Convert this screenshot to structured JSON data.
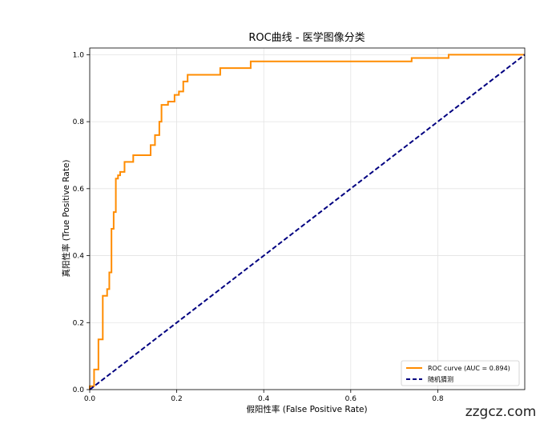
{
  "chart_data": {
    "type": "line",
    "title": "ROC曲线 - 医学图像分类",
    "xlabel": "假阳性率 (False Positive Rate)",
    "ylabel": "真阳性率 (True Positive Rate)",
    "xlim": [
      0,
      1
    ],
    "ylim": [
      0,
      1.02
    ],
    "xticks": [
      0.0,
      0.2,
      0.4,
      0.6,
      0.8
    ],
    "xtick_labels": [
      "0.0",
      "0.2",
      "0.4",
      "0.6",
      "0.8"
    ],
    "yticks": [
      0.0,
      0.2,
      0.4,
      0.6,
      0.8,
      1.0
    ],
    "ytick_labels": [
      "0.0",
      "0.2",
      "0.4",
      "0.6",
      "0.8",
      "1.0"
    ],
    "grid": true,
    "legend_position": "lower-right",
    "series": [
      {
        "name": "ROC curve (AUC = 0.894)",
        "color": "#ff8c00",
        "style": "solid",
        "x": [
          0.0,
          0.0,
          0.01,
          0.01,
          0.02,
          0.02,
          0.03,
          0.03,
          0.04,
          0.04,
          0.045,
          0.045,
          0.05,
          0.05,
          0.055,
          0.055,
          0.06,
          0.06,
          0.065,
          0.065,
          0.07,
          0.07,
          0.08,
          0.08,
          0.1,
          0.1,
          0.14,
          0.14,
          0.15,
          0.15,
          0.16,
          0.16,
          0.165,
          0.165,
          0.18,
          0.18,
          0.195,
          0.195,
          0.205,
          0.205,
          0.215,
          0.215,
          0.225,
          0.225,
          0.23,
          0.23,
          0.3,
          0.3,
          0.37,
          0.37,
          0.74,
          0.74,
          0.825,
          0.825,
          1.0
        ],
        "y": [
          0.0,
          0.01,
          0.01,
          0.06,
          0.06,
          0.15,
          0.15,
          0.28,
          0.28,
          0.3,
          0.3,
          0.35,
          0.35,
          0.48,
          0.48,
          0.53,
          0.53,
          0.63,
          0.63,
          0.64,
          0.64,
          0.65,
          0.65,
          0.68,
          0.68,
          0.7,
          0.7,
          0.73,
          0.73,
          0.76,
          0.76,
          0.8,
          0.8,
          0.85,
          0.85,
          0.86,
          0.86,
          0.88,
          0.88,
          0.89,
          0.89,
          0.92,
          0.92,
          0.94,
          0.94,
          0.94,
          0.94,
          0.96,
          0.96,
          0.98,
          0.98,
          0.99,
          0.99,
          1.0,
          1.0
        ]
      },
      {
        "name": "随机猜测",
        "color": "#000080",
        "style": "dashed",
        "x": [
          0.0,
          1.0
        ],
        "y": [
          0.0,
          1.0
        ]
      }
    ]
  },
  "watermark": "zzgcz.com"
}
